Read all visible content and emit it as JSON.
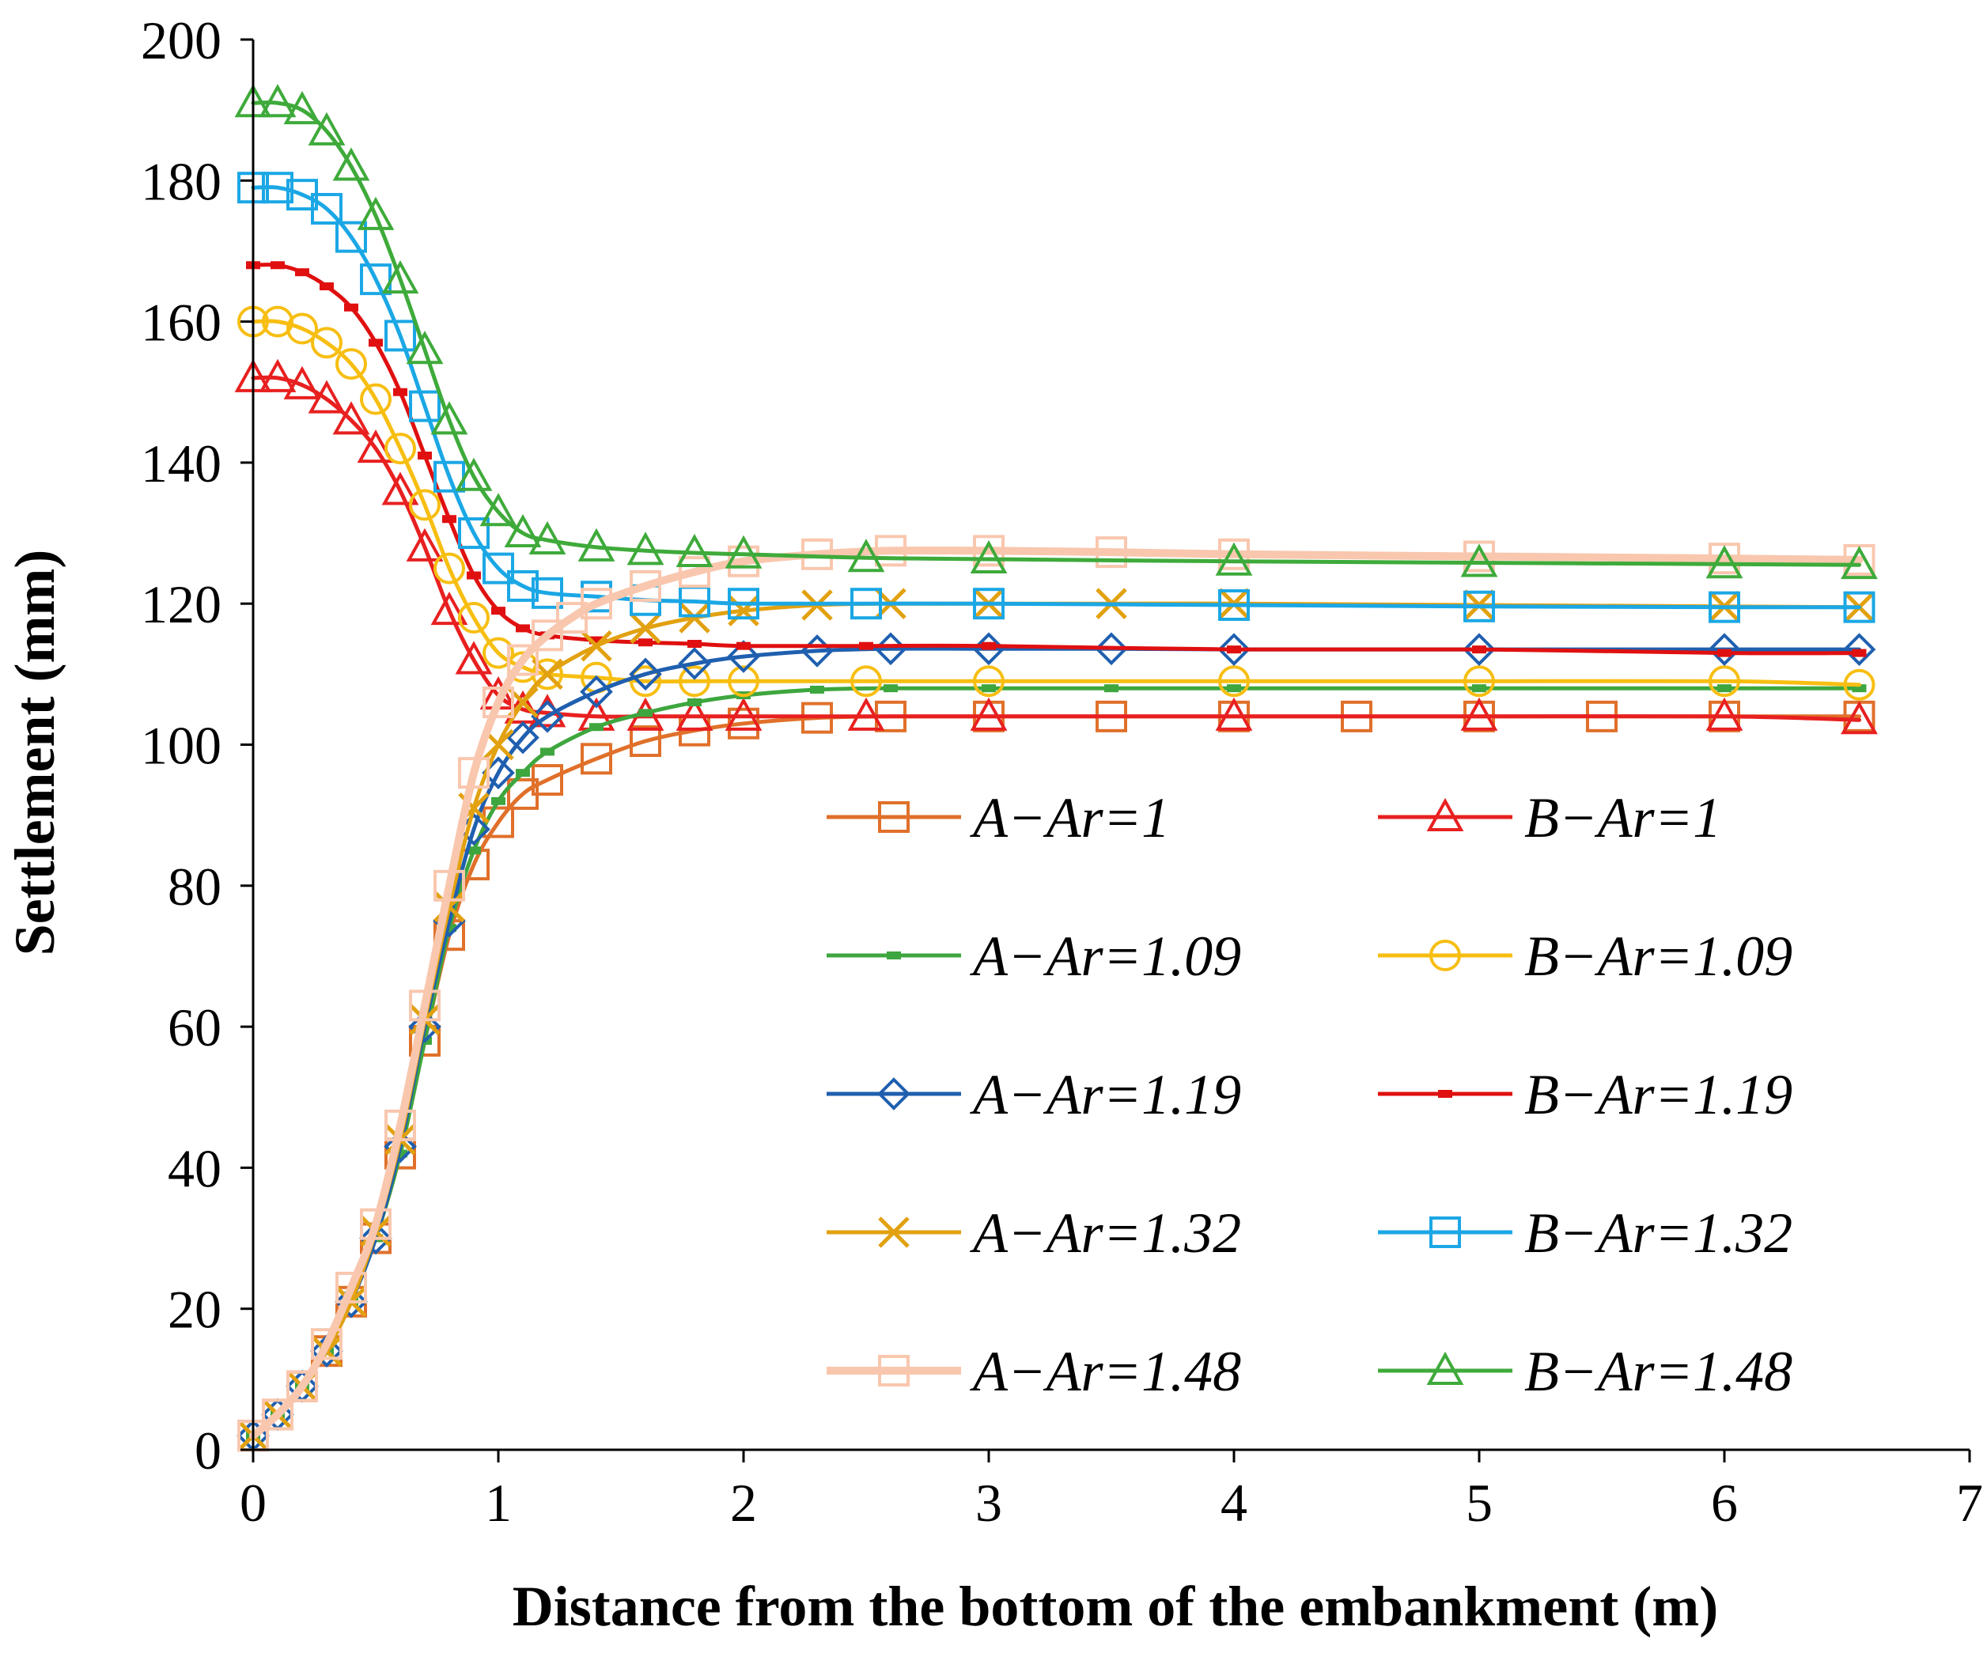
{
  "chart_data": {
    "type": "line",
    "title": "",
    "xlabel": "Distance from the bottom of the embankment (m)",
    "ylabel": "Settlement (mm)",
    "xlim": [
      0,
      7
    ],
    "ylim": [
      0,
      200
    ],
    "xticks": [
      0,
      1,
      2,
      3,
      4,
      5,
      6,
      7
    ],
    "yticks": [
      0,
      20,
      40,
      60,
      80,
      100,
      120,
      140,
      160,
      180,
      200
    ],
    "grid": false,
    "legend_position": "bottom-right",
    "series": [
      {
        "name": "A−Ar=1",
        "color": "#E0702A",
        "marker": "square",
        "line_width": 5,
        "x": [
          0,
          0.1,
          0.2,
          0.3,
          0.4,
          0.5,
          0.6,
          0.7,
          0.8,
          0.9,
          1.0,
          1.1,
          1.2,
          1.4,
          1.6,
          1.8,
          2.0,
          2.3,
          2.6,
          3.0,
          3.5,
          4.0,
          4.5,
          5.0,
          5.5,
          6.0,
          6.55
        ],
        "y": [
          2,
          5,
          9,
          14,
          21,
          30,
          42,
          58,
          73,
          83,
          89,
          93,
          95,
          98,
          100.5,
          102,
          103,
          103.8,
          104,
          104,
          104,
          104,
          104,
          104,
          104,
          104,
          104
        ]
      },
      {
        "name": "B−Ar=1",
        "color": "#E82020",
        "marker": "triangle",
        "line_width": 5,
        "x": [
          0,
          0.1,
          0.2,
          0.3,
          0.4,
          0.5,
          0.6,
          0.7,
          0.8,
          0.9,
          1.0,
          1.1,
          1.2,
          1.4,
          1.6,
          1.8,
          2.0,
          2.5,
          3.0,
          4.0,
          5.0,
          6.0,
          6.55
        ],
        "y": [
          152,
          152,
          151,
          149,
          146,
          142,
          136,
          128,
          119,
          112,
          107,
          105,
          104.5,
          104,
          104,
          104,
          104,
          104,
          104,
          104,
          104,
          104,
          103.5
        ]
      },
      {
        "name": "A−Ar=1.09",
        "color": "#3EA63E",
        "marker": "dash",
        "line_width": 5,
        "x": [
          0,
          0.1,
          0.2,
          0.3,
          0.4,
          0.5,
          0.6,
          0.7,
          0.8,
          0.9,
          1.0,
          1.1,
          1.2,
          1.4,
          1.6,
          1.8,
          2.0,
          2.3,
          2.6,
          3.0,
          3.5,
          4.0,
          5.0,
          6.0,
          6.55
        ],
        "y": [
          2,
          5,
          9,
          14,
          21,
          30,
          42,
          58,
          74,
          85,
          92,
          96,
          99,
          102.5,
          104.5,
          106,
          107,
          107.8,
          108,
          108,
          108,
          108,
          108,
          108,
          108
        ]
      },
      {
        "name": "B−Ar=1.09",
        "color": "#F7BE12",
        "marker": "circle",
        "line_width": 5,
        "x": [
          0,
          0.1,
          0.2,
          0.3,
          0.4,
          0.5,
          0.6,
          0.7,
          0.8,
          0.9,
          1.0,
          1.1,
          1.2,
          1.4,
          1.6,
          1.8,
          2.0,
          2.5,
          3.0,
          4.0,
          5.0,
          6.0,
          6.55
        ],
        "y": [
          160,
          160,
          159,
          157,
          154,
          149,
          142,
          134,
          125,
          118,
          113,
          111,
          110,
          109.5,
          109,
          109,
          109,
          109,
          109,
          109,
          109,
          109,
          108.5
        ]
      },
      {
        "name": "A−Ar=1.19",
        "color": "#1F5FAF",
        "marker": "diamond",
        "line_width": 5,
        "x": [
          0,
          0.1,
          0.2,
          0.3,
          0.4,
          0.5,
          0.6,
          0.7,
          0.8,
          0.9,
          1.0,
          1.1,
          1.2,
          1.4,
          1.6,
          1.8,
          2.0,
          2.3,
          2.6,
          3.0,
          3.5,
          4.0,
          5.0,
          6.0,
          6.55
        ],
        "y": [
          2,
          5,
          9,
          14,
          21,
          30,
          43,
          60,
          75,
          88,
          96,
          101,
          104,
          107.5,
          110,
          111.5,
          112.5,
          113.3,
          113.6,
          113.6,
          113.6,
          113.5,
          113.5,
          113.5,
          113.5
        ]
      },
      {
        "name": "B−Ar=1.19",
        "color": "#E01010",
        "marker": "dash",
        "line_width": 5,
        "x": [
          0,
          0.1,
          0.2,
          0.3,
          0.4,
          0.5,
          0.6,
          0.7,
          0.8,
          0.9,
          1.0,
          1.1,
          1.2,
          1.4,
          1.6,
          1.8,
          2.0,
          2.5,
          3.0,
          4.0,
          5.0,
          6.0,
          6.55
        ],
        "y": [
          168,
          168,
          167,
          165,
          162,
          157,
          150,
          141,
          132,
          124,
          119,
          116.5,
          115.5,
          114.8,
          114.5,
          114.3,
          114,
          114,
          114,
          113.5,
          113.5,
          113,
          113
        ]
      },
      {
        "name": "A−Ar=1.32",
        "color": "#E2A110",
        "marker": "x",
        "line_width": 5,
        "x": [
          0,
          0.1,
          0.2,
          0.3,
          0.4,
          0.5,
          0.6,
          0.7,
          0.8,
          0.9,
          1.0,
          1.1,
          1.2,
          1.4,
          1.6,
          1.8,
          2.0,
          2.3,
          2.6,
          3.0,
          3.5,
          4.0,
          5.0,
          6.0,
          6.55
        ],
        "y": [
          2,
          5,
          9,
          14,
          21,
          31,
          44,
          61,
          77,
          91,
          100,
          106,
          110,
          114,
          116.5,
          118,
          119,
          119.8,
          120,
          120,
          120,
          120,
          119.8,
          119.6,
          119.5
        ]
      },
      {
        "name": "B−Ar=1.32",
        "color": "#1BA7E5",
        "marker": "square",
        "line_width": 5,
        "x": [
          0,
          0.1,
          0.2,
          0.3,
          0.4,
          0.5,
          0.6,
          0.7,
          0.8,
          0.9,
          1.0,
          1.1,
          1.2,
          1.4,
          1.6,
          1.8,
          2.0,
          2.5,
          3.0,
          4.0,
          5.0,
          6.0,
          6.55
        ],
        "y": [
          179,
          179,
          178,
          176,
          172,
          166,
          158,
          148,
          138,
          130,
          125,
          122.5,
          121.5,
          121,
          120.5,
          120.3,
          120,
          120,
          120,
          119.8,
          119.6,
          119.5,
          119.5
        ]
      },
      {
        "name": "A−Ar=1.48",
        "color": "#F9C7AE",
        "marker": "square",
        "line_width": 10,
        "x": [
          0,
          0.1,
          0.2,
          0.3,
          0.4,
          0.5,
          0.6,
          0.7,
          0.8,
          0.9,
          1.0,
          1.1,
          1.2,
          1.3,
          1.4,
          1.6,
          1.8,
          2.0,
          2.3,
          2.6,
          3.0,
          3.5,
          4.0,
          5.0,
          6.0,
          6.55
        ],
        "y": [
          2,
          5,
          9,
          15,
          23,
          32,
          46,
          63,
          80,
          96,
          106,
          112,
          115.5,
          118,
          120,
          122.5,
          124.5,
          126,
          127,
          127.5,
          127.5,
          127.3,
          127,
          126.7,
          126.4,
          126.2
        ]
      },
      {
        "name": "B−Ar=1.48",
        "color": "#3EAA3A",
        "marker": "triangle",
        "line_width": 5,
        "x": [
          0,
          0.1,
          0.2,
          0.3,
          0.4,
          0.5,
          0.6,
          0.7,
          0.8,
          0.9,
          1.0,
          1.1,
          1.2,
          1.4,
          1.6,
          1.8,
          2.0,
          2.5,
          3.0,
          4.0,
          5.0,
          6.0,
          6.55
        ],
        "y": [
          191,
          191,
          190,
          187,
          182,
          175,
          166,
          156,
          146,
          138,
          133,
          130,
          129,
          128,
          127.5,
          127.2,
          127,
          126.5,
          126.3,
          126,
          125.8,
          125.6,
          125.5
        ]
      }
    ]
  }
}
